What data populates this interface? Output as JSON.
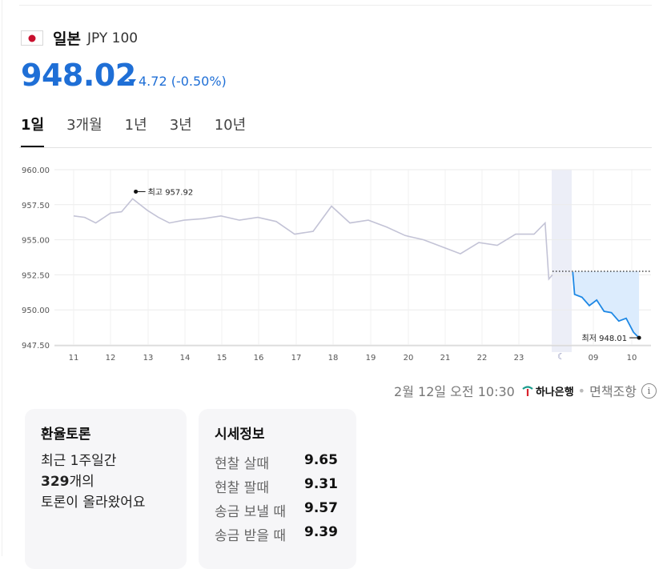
{
  "header": {
    "country": "일본",
    "code": "JPY 100",
    "flag_icon": "japan-flag-icon"
  },
  "price": {
    "value": "948.02",
    "change": "4.72 (-0.50%)",
    "direction": "down",
    "color": "#1f6fd6"
  },
  "tabs": [
    {
      "label": "1일",
      "active": true
    },
    {
      "label": "3개월",
      "active": false
    },
    {
      "label": "1년",
      "active": false
    },
    {
      "label": "3년",
      "active": false
    },
    {
      "label": "10년",
      "active": false
    }
  ],
  "chart_data": {
    "type": "line",
    "yticks": [
      "960.00",
      "957.50",
      "955.00",
      "952.50",
      "950.00",
      "947.50"
    ],
    "ylim": [
      947.5,
      960.0
    ],
    "xticks": [
      "11",
      "12",
      "13",
      "14",
      "15",
      "16",
      "17",
      "18",
      "19",
      "20",
      "21",
      "22",
      "23",
      "09",
      "10"
    ],
    "grid": true,
    "annotations": {
      "high": {
        "label": "최고",
        "value": "957.92"
      },
      "low": {
        "label": "최저",
        "value": "948.01"
      }
    },
    "reference_line": 952.75,
    "colors": {
      "history": "#c3c3d6",
      "today": "#1e88e5",
      "area": "#dcecfd",
      "night_band": "#eceef7"
    },
    "series": [
      {
        "x": [
          0,
          0.3,
          0.6,
          1,
          1.3,
          1.6,
          2,
          2.3,
          2.6,
          3,
          3.5,
          4,
          4.5,
          5,
          5.5,
          6,
          6.5,
          7,
          7.5,
          8,
          8.5,
          9,
          9.5,
          10,
          10.5,
          11,
          11.5,
          12,
          12.5,
          12.8,
          12.9,
          13
        ],
        "values": [
          956.7,
          956.6,
          956.2,
          956.9,
          957.0,
          957.92,
          957.1,
          956.6,
          956.2,
          956.4,
          956.5,
          956.7,
          956.4,
          956.6,
          956.3,
          955.4,
          955.6,
          957.4,
          956.2,
          956.4,
          955.9,
          955.3,
          955.0,
          954.5,
          954.0,
          954.8,
          954.6,
          955.4,
          955.4,
          956.2,
          952.2,
          952.5
        ]
      },
      {
        "x": [
          13.55,
          13.6,
          13.8,
          14,
          14.2,
          14.4,
          14.6,
          14.8,
          15,
          15.2,
          15.35
        ],
        "values": [
          952.7,
          951.1,
          950.9,
          950.3,
          950.7,
          949.9,
          949.8,
          949.2,
          949.4,
          948.4,
          948.01
        ]
      }
    ]
  },
  "meta": {
    "date": "2월 12일 오전 10:30",
    "bank": "하나은행",
    "disclaimer": "면책조항"
  },
  "discussion": {
    "title": "환율토론",
    "line1": "최근 1주일간",
    "count": "329",
    "count_suffix": "개의",
    "line3": "토론이 올라왔어요"
  },
  "rates": {
    "title": "시세정보",
    "items": [
      {
        "label": "현찰 살때",
        "value": "9.65"
      },
      {
        "label": "현찰 팔때",
        "value": "9.31"
      },
      {
        "label": "송금 보낼 때",
        "value": "9.57"
      },
      {
        "label": "송금 받을 때",
        "value": "9.39"
      }
    ]
  }
}
